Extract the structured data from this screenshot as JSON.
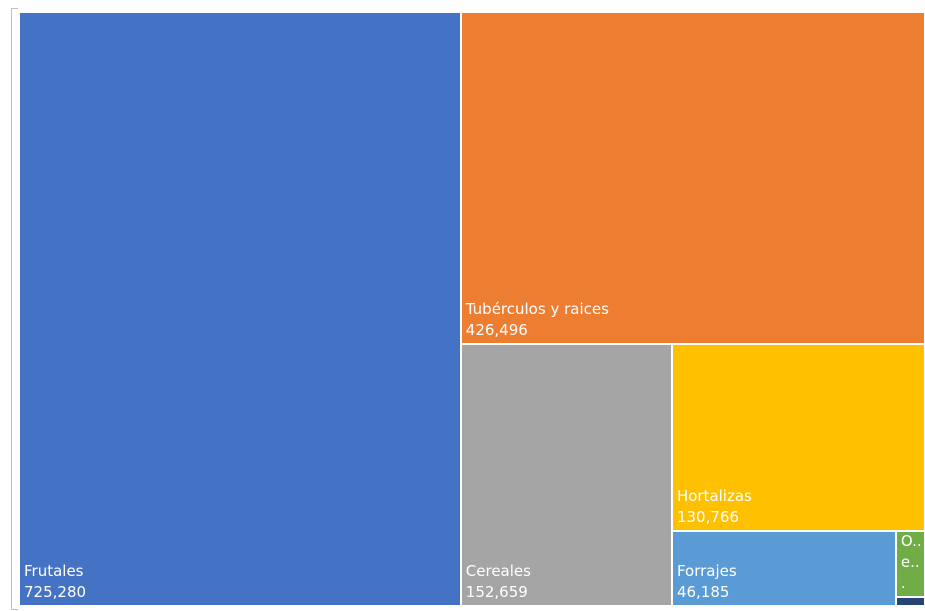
{
  "chart_data": {
    "type": "treemap",
    "categories": [
      "Frutales",
      "Tubérculos y raices",
      "Cereales",
      "Hortalizas",
      "Forrajes",
      "O.. e...",
      null
    ],
    "values": [
      725280,
      426496,
      152659,
      130766,
      46185,
      5300,
      700
    ],
    "value_labels": [
      "725,280",
      "426,496",
      "152,659",
      "130,766",
      "46,185",
      null,
      null
    ],
    "colors": [
      "#4472c4",
      "#ed7d31",
      "#a5a5a5",
      "#ffc000",
      "#5b9bd5",
      "#70ad47",
      "#264478"
    ]
  }
}
